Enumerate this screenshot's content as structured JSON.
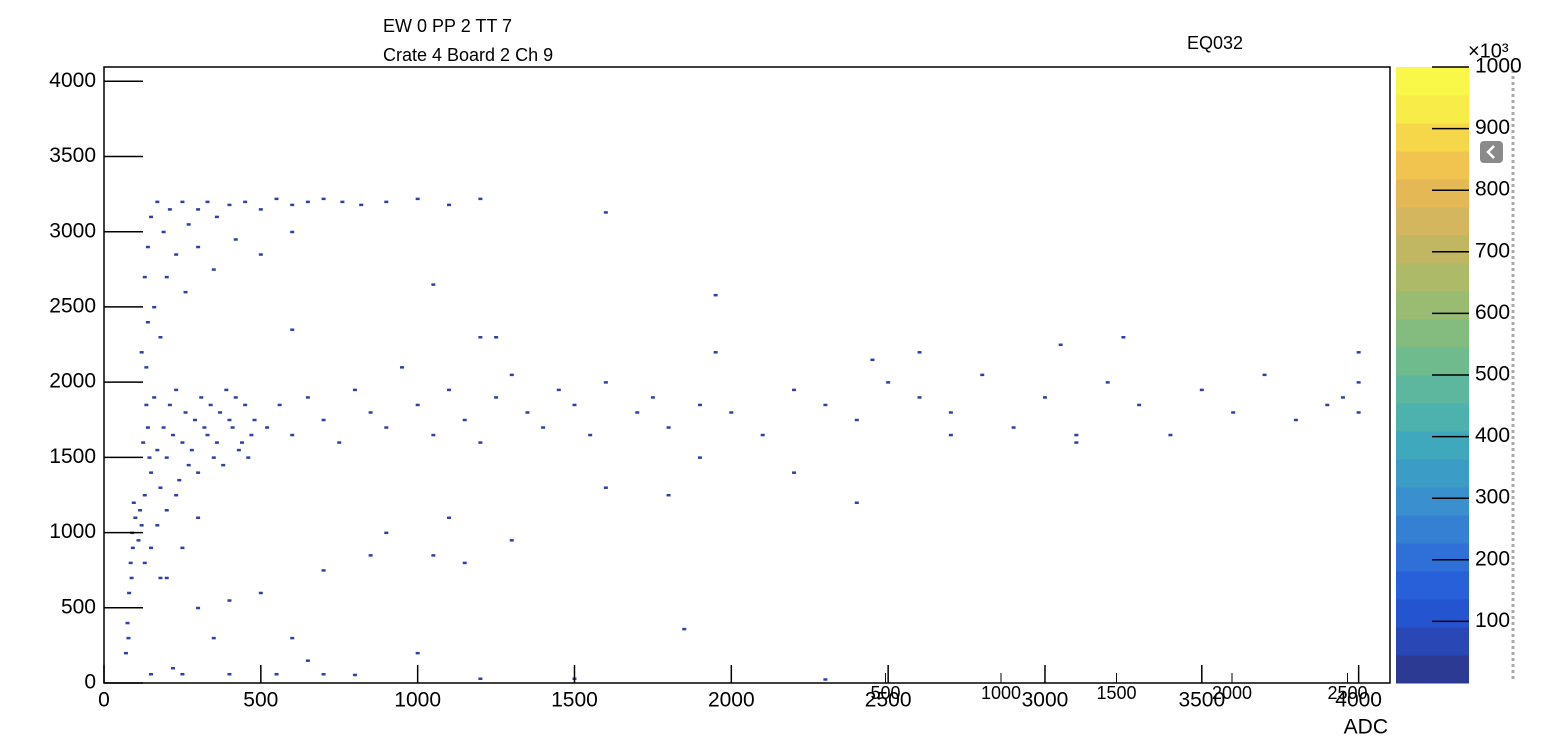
{
  "chart_data": {
    "type": "scatter",
    "title_lines": [
      "EW 0 PP 2 TT 7",
      "Crate 4 Board 2 Ch 9"
    ],
    "subtitle": "EQ032",
    "x_label": "ADC",
    "color": "#2f40a6",
    "xlim": [
      0,
      4100
    ],
    "ylim": [
      0,
      4095
    ],
    "xticks": [
      0,
      500,
      1000,
      1500,
      2000,
      2500,
      3000,
      3500,
      4000
    ],
    "yticks": [
      0,
      500,
      1000,
      1500,
      2000,
      2500,
      3000,
      3500,
      4000
    ],
    "x2lim": [
      0,
      2684
    ],
    "x2ticks": [
      500,
      1000,
      1500,
      2000,
      2500
    ],
    "zlim": [
      0,
      1000
    ],
    "zticks": [
      100,
      200,
      300,
      400,
      500,
      600,
      700,
      800,
      900,
      1000
    ],
    "z_multiplier": "×10³",
    "palette": [
      "#2c3a94",
      "#2a48b5",
      "#2454d0",
      "#2760d8",
      "#2e6fd8",
      "#3680d4",
      "#3a8fcf",
      "#3b9cc6",
      "#40a8bc",
      "#4db1ad",
      "#5db79e",
      "#6fbb8e",
      "#84bc7f",
      "#99bb72",
      "#adba68",
      "#c1b763",
      "#d3b65d",
      "#e5b856",
      "#f1c450",
      "#f7d74a",
      "#f8ec48",
      "#f9f748"
    ],
    "x": [
      130,
      150,
      170,
      190,
      210,
      230,
      250,
      270,
      290,
      310,
      330,
      350,
      370,
      390,
      410,
      430,
      450,
      470,
      140,
      160,
      180,
      200,
      220,
      240,
      260,
      280,
      300,
      320,
      340,
      360,
      380,
      400,
      420,
      440,
      460,
      480,
      115,
      125,
      135,
      145,
      70,
      75,
      80,
      85,
      90,
      95,
      78,
      88,
      92,
      100,
      110,
      120,
      130,
      150,
      170,
      200,
      230,
      180,
      250,
      300,
      130,
      140,
      150,
      170,
      190,
      210,
      230,
      250,
      270,
      300,
      330,
      360,
      400,
      450,
      500,
      550,
      600,
      650,
      700,
      760,
      820,
      900,
      1000,
      1100,
      1200,
      1600,
      160,
      180,
      140,
      200,
      260,
      300,
      350,
      420,
      500,
      600,
      120,
      135,
      520,
      560,
      600,
      650,
      700,
      750,
      800,
      850,
      900,
      950,
      1000,
      1050,
      1100,
      1150,
      1200,
      1250,
      1300,
      1350,
      1400,
      1450,
      1500,
      1550,
      1600,
      1700,
      1750,
      1800,
      1900,
      1950,
      2000,
      2100,
      2200,
      2300,
      2400,
      2500,
      2600,
      2700,
      2800,
      2900,
      3000,
      3100,
      3200,
      3300,
      3400,
      3500,
      3600,
      3700,
      3800,
      3900,
      4000,
      4000,
      4000,
      3950,
      3250,
      3050,
      2450,
      2600,
      1250,
      1600,
      1800,
      2400,
      1100,
      900,
      1900,
      2200,
      2700,
      3100,
      200,
      300,
      400,
      500,
      600,
      700,
      850,
      1000,
      1050,
      1150,
      1300,
      1850,
      650,
      350,
      220,
      150,
      250,
      400,
      550,
      700,
      800,
      1200,
      1500,
      2300,
      1950,
      1050,
      600,
      1200
    ],
    "y": [
      1250,
      1400,
      1550,
      1700,
      1850,
      1950,
      1600,
      1450,
      1750,
      1900,
      1650,
      1500,
      1800,
      1950,
      1700,
      1550,
      1850,
      1650,
      1700,
      1900,
      1300,
      1500,
      1650,
      1350,
      1800,
      1550,
      1400,
      1700,
      1850,
      1600,
      1450,
      1750,
      1900,
      1600,
      1500,
      1750,
      1150,
      1600,
      1850,
      1500,
      200,
      400,
      600,
      800,
      1000,
      1200,
      300,
      700,
      900,
      1100,
      950,
      1050,
      800,
      900,
      1050,
      1150,
      1250,
      700,
      900,
      1100,
      2700,
      2900,
      3100,
      3200,
      3000,
      3150,
      2850,
      3200,
      3050,
      3150,
      3200,
      3100,
      3180,
      3200,
      3150,
      3220,
      3180,
      3200,
      3220,
      3200,
      3180,
      3200,
      3220,
      3180,
      3220,
      3130,
      2500,
      2300,
      2400,
      2700,
      2600,
      2900,
      2750,
      2950,
      2850,
      3000,
      2200,
      2100,
      1700,
      1850,
      1650,
      1900,
      1750,
      1600,
      1950,
      1800,
      1700,
      2100,
      1850,
      1650,
      1950,
      1750,
      1600,
      1900,
      2050,
      1800,
      1700,
      1950,
      1850,
      1650,
      2000,
      1800,
      1900,
      1700,
      1850,
      2200,
      1800,
      1650,
      1950,
      1850,
      1750,
      2000,
      1900,
      1800,
      2050,
      1700,
      1900,
      1650,
      2000,
      1850,
      1650,
      1950,
      1800,
      2050,
      1750,
      1850,
      2000,
      1800,
      2200,
      1900,
      2300,
      2250,
      2150,
      2200,
      2300,
      1300,
      1250,
      1200,
      1100,
      1000,
      1500,
      1400,
      1650,
      1600,
      700,
      500,
      550,
      600,
      300,
      750,
      850,
      200,
      850,
      800,
      950,
      360,
      150,
      300,
      100,
      60,
      60,
      60,
      60,
      60,
      55,
      30,
      30,
      25,
      2580,
      2650,
      2350,
      2300
    ]
  }
}
